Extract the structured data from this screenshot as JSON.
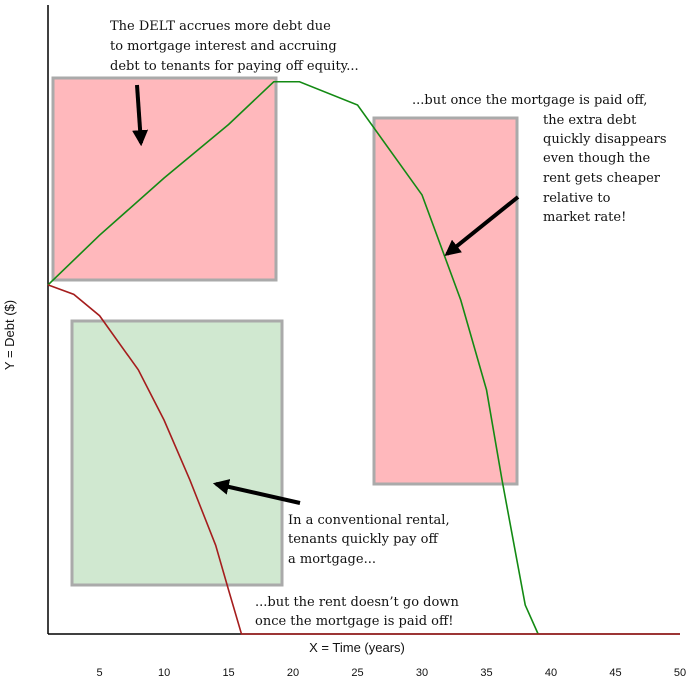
{
  "chart_data": {
    "type": "line",
    "x_label": "X = Time (years)",
    "y_label": "Y = Debt ($)",
    "xlim": [
      1,
      50
    ],
    "ylim": [
      0,
      100
    ],
    "xticks": [
      5,
      10,
      15,
      20,
      25,
      30,
      35,
      40,
      45,
      50
    ],
    "series": [
      {
        "color": "#138a13",
        "x": [
          1,
          5,
          10,
          15,
          18.5,
          20.5,
          25,
          30,
          33,
          35,
          36.2,
          38,
          39
        ],
        "values": [
          55.5,
          63.4,
          72.5,
          81,
          87.8,
          87.8,
          84.1,
          69.8,
          53.1,
          38.8,
          24.5,
          4.6,
          0
        ]
      },
      {
        "color": "#a51d1d",
        "x": [
          1,
          3,
          5,
          8,
          10,
          12,
          14,
          15,
          16,
          50
        ],
        "values": [
          55.5,
          54,
          50.6,
          42,
          34,
          24.5,
          14.1,
          7,
          0,
          0
        ]
      }
    ],
    "annotations": [
      {
        "lines": [
          "The DELT accrues more debt due",
          "to mortgage interest and accruing",
          "debt to tenants for paying off equity..."
        ]
      },
      {
        "lines": [
          "...but once the mortgage is paid off,",
          "the extra debt",
          "quickly disappears",
          "even though the",
          "rent gets cheaper",
          "relative to",
          "market rate!"
        ]
      },
      {
        "lines": [
          "In a conventional rental,",
          "tenants quickly pay off",
          "a mortgage..."
        ]
      },
      {
        "lines": [
          "...but the rent doesn’t go down",
          "once the mortgage is paid off!"
        ]
      }
    ]
  }
}
